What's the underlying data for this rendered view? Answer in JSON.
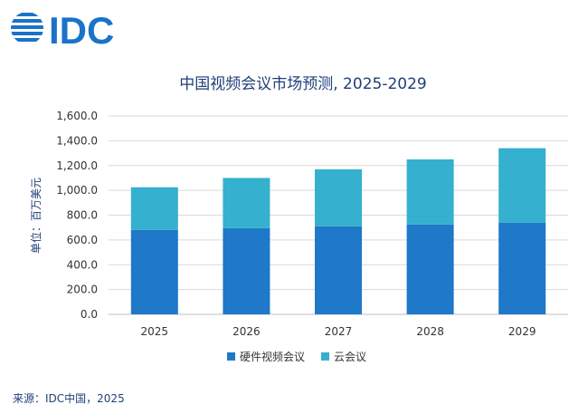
{
  "logo_text": "IDC",
  "chart_data": {
    "type": "bar",
    "stacked": true,
    "title": "中国视频会议市场预测, 2025-2029",
    "ylabel": "单位：百万美元",
    "xlabel": "",
    "categories": [
      "2025",
      "2026",
      "2027",
      "2028",
      "2029"
    ],
    "series": [
      {
        "name": "硬件视频会议",
        "values": [
          680,
          695,
          710,
          725,
          740
        ],
        "color": "#1f78c8"
      },
      {
        "name": "云会议",
        "values": [
          345,
          405,
          460,
          525,
          600
        ],
        "color": "#35b0cf"
      }
    ],
    "ylim": [
      0,
      1600
    ],
    "yticks": [
      "0.0",
      "200.0",
      "400.0",
      "600.0",
      "800.0",
      "1,000.0",
      "1,200.0",
      "1,400.0",
      "1,600.0"
    ],
    "grid": true,
    "legend_position": "bottom"
  },
  "source": "来源：IDC中国，2025"
}
